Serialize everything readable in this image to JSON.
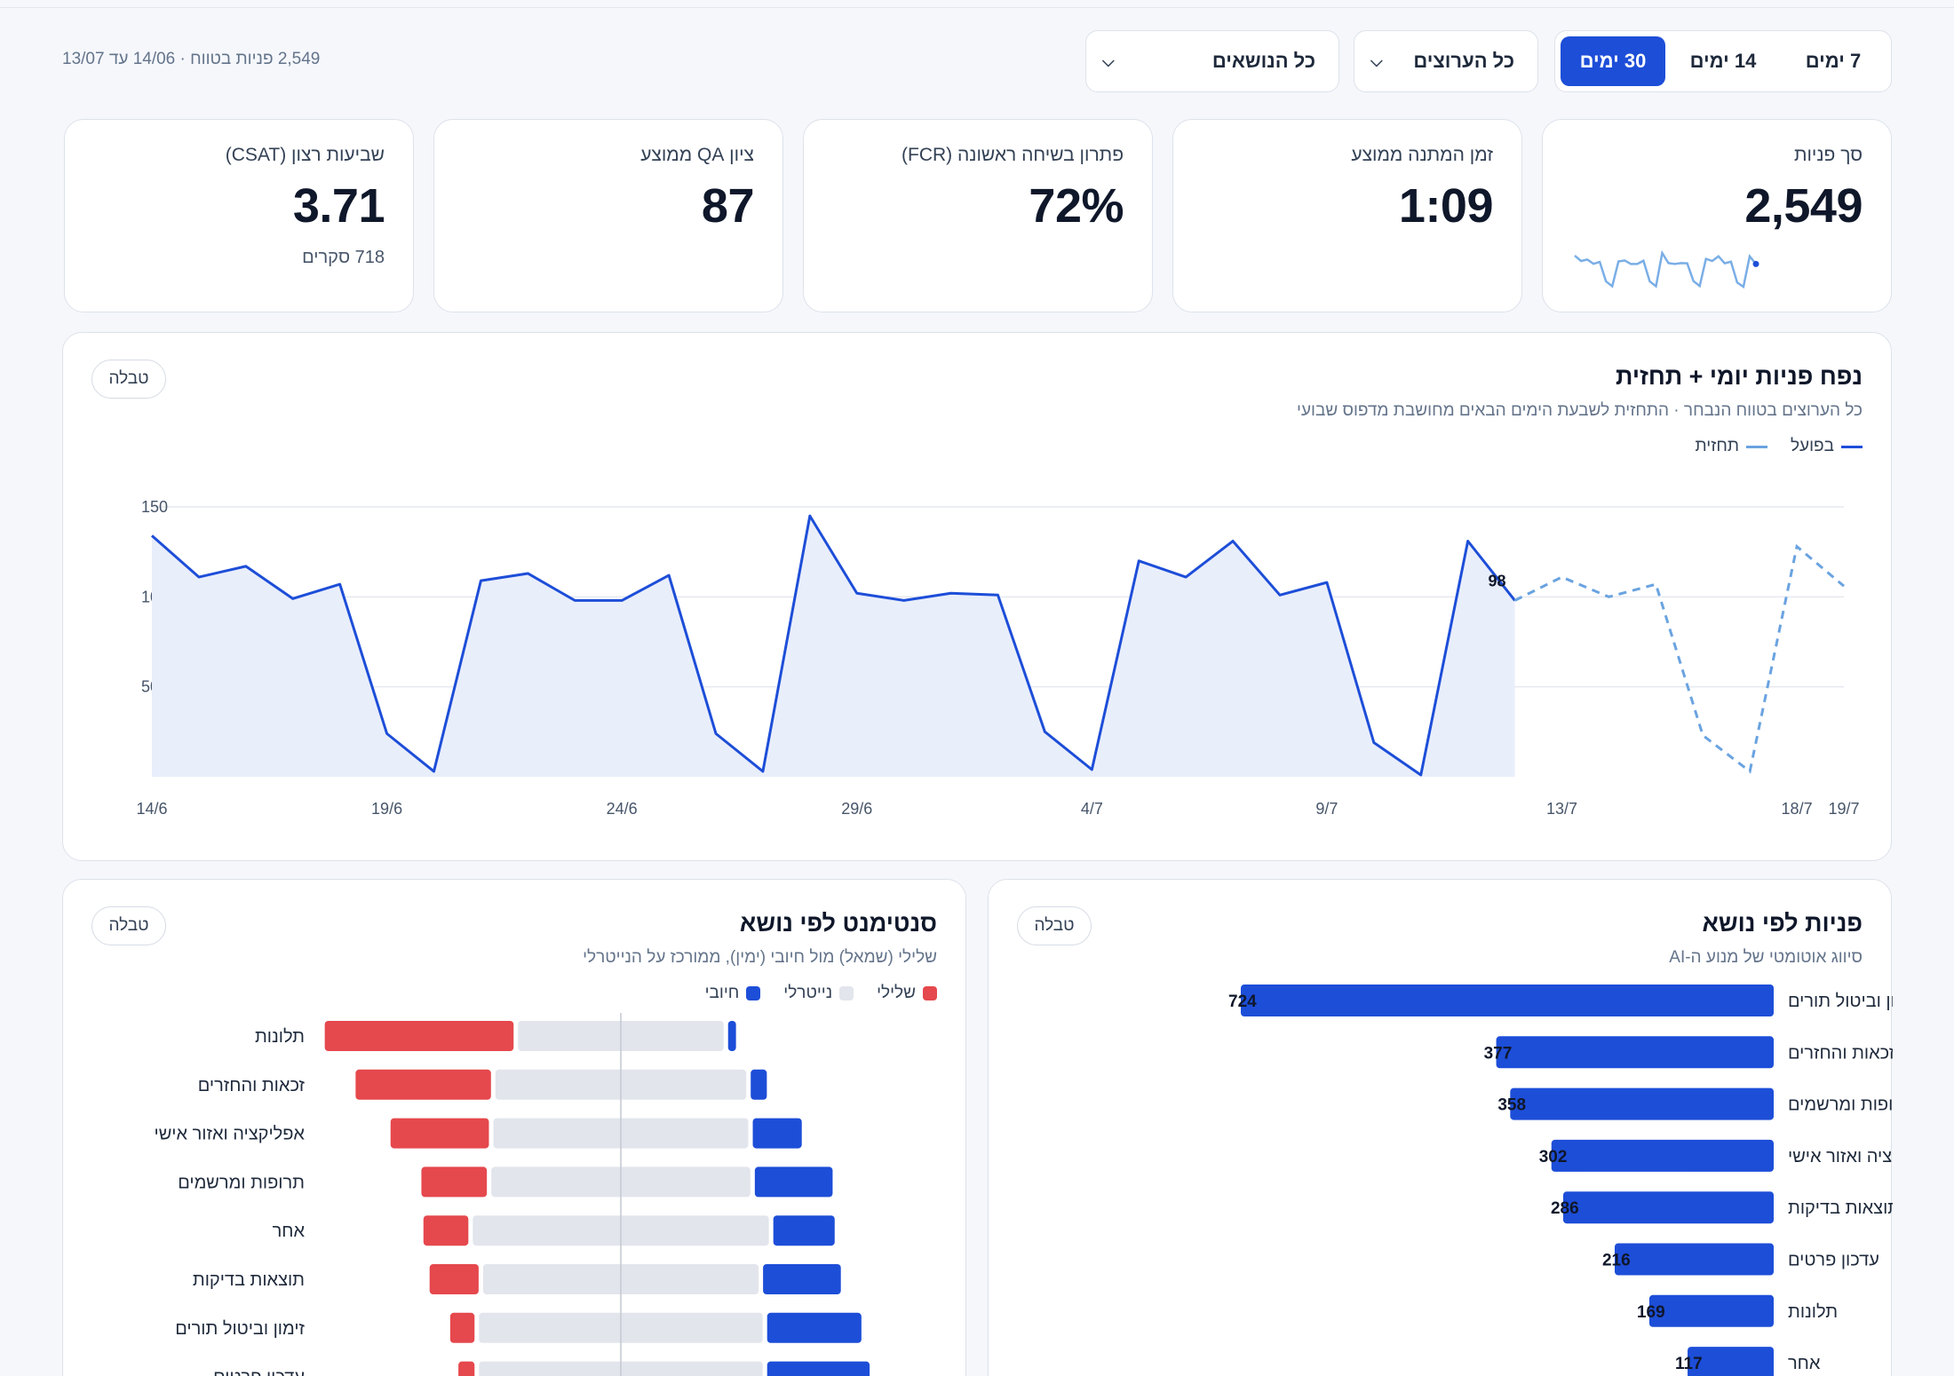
{
  "filters": {
    "periods": [
      {
        "label": "7 ימים",
        "active": false
      },
      {
        "label": "14 ימים",
        "active": false
      },
      {
        "label": "30 ימים",
        "active": true
      }
    ],
    "agents_select": "כל הערוצים",
    "topics_select": "כל הנושאים",
    "range_summary": "2,549 פניות בטווח · 14/06 עד 13/07"
  },
  "kpis": [
    {
      "label": "סך פניות",
      "value": "2,549",
      "sub": ""
    },
    {
      "label": "זמן המתנה ממוצע",
      "value": "1:09",
      "sub": ""
    },
    {
      "label": "פתרון בשיחה ראשונה (FCR)",
      "value": "72%",
      "sub": ""
    },
    {
      "label": "ציון QA ממוצע",
      "value": "87",
      "sub": ""
    },
    {
      "label": "שביעות רצון (CSAT)",
      "value": "3.71",
      "sub": "718 סקרים"
    }
  ],
  "volume": {
    "title": "נפח פניות יומי + תחזית",
    "subtitle": "כל הערוצים בטווח הנבחר · התחזית לשבעת הימים הבאים מחושבת מדפוס שבועי",
    "legend_actual": "בפועל",
    "legend_forecast": "תחזית",
    "table_label": "טבלה"
  },
  "topics": {
    "title": "פניות לפי נושא",
    "subtitle": "סיווג אוטומטי של מנוע ה-AI",
    "table_label": "טבלה"
  },
  "sentiment": {
    "title": "סנטימנט לפי נושא",
    "subtitle": "שלילי (שמאל) מול חיובי (ימין), ממורכז על הנייטרלי",
    "legend_negative": "שלילי",
    "legend_neutral": "נייטרלי",
    "legend_positive": "חיובי",
    "table_label": "טבלה"
  },
  "colors": {
    "accent": "#1d4ed8",
    "forecast": "#6aa3e0",
    "negative": "#e5484d",
    "neutral": "#e2e5ec"
  },
  "chart_data": [
    {
      "type": "line",
      "title": "נפח פניות יומי + תחזית",
      "x_ticks": [
        "14/6",
        "19/6",
        "24/6",
        "29/6",
        "4/7",
        "9/7",
        "13/7",
        "18/7",
        "19/7"
      ],
      "y_ticks": [
        50,
        100,
        150
      ],
      "ylim": [
        0,
        150
      ],
      "last_actual_label": "98",
      "series": [
        {
          "name": "בפועל",
          "values": [
            134,
            111,
            117,
            99,
            107,
            24,
            3,
            109,
            113,
            98,
            98,
            112,
            24,
            3,
            145,
            102,
            98,
            102,
            101,
            25,
            4,
            120,
            111,
            131,
            101,
            108,
            19,
            1,
            131,
            98
          ]
        },
        {
          "name": "תחזית",
          "values": [
            98,
            111,
            100,
            107,
            23,
            3,
            128,
            106
          ]
        }
      ]
    },
    {
      "type": "bar",
      "title": "פניות לפי נושא",
      "categories": [
        "זימון וביטול תורים",
        "זכאות והחזרים",
        "תרופות ומרשמים",
        "אפליקציה ואזור אישי",
        "תוצאות בדיקות",
        "עדכון פרטים",
        "תלונות",
        "אחר"
      ],
      "values": [
        724,
        377,
        358,
        302,
        286,
        216,
        169,
        117
      ]
    },
    {
      "type": "bar",
      "title": "סנטימנט לפי נושא",
      "categories": [
        "תלונות",
        "זכאות והחזרים",
        "אפליקציה ואזור אישי",
        "תרופות ומרשמים",
        "אחר",
        "תוצאות בדיקות",
        "זימון וביטול תורים",
        "עדכון פרטים"
      ],
      "series": [
        {
          "name": "שלילי",
          "values": [
            0.47,
            0.34,
            0.25,
            0.17,
            0.12,
            0.13,
            0.07,
            0.05
          ]
        },
        {
          "name": "נייטרלי",
          "values": [
            0.5,
            0.61,
            0.62,
            0.63,
            0.72,
            0.67,
            0.69,
            0.69
          ]
        },
        {
          "name": "חיובי",
          "values": [
            0.03,
            0.05,
            0.13,
            0.2,
            0.16,
            0.2,
            0.24,
            0.26
          ]
        }
      ]
    }
  ]
}
